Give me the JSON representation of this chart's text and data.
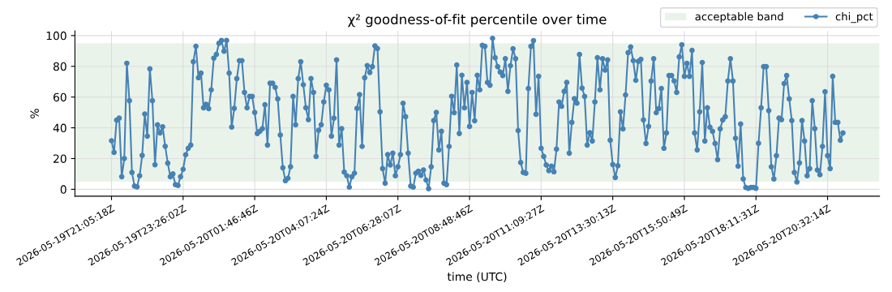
{
  "chart_data": {
    "type": "line",
    "title": "χ² goodness-of-fit percentile over time",
    "xlabel": "time (UTC)",
    "ylabel": "%",
    "categories": [
      "2026-05-19T21:05:18Z",
      null,
      null,
      null,
      null,
      null,
      null,
      null,
      null,
      null,
      null,
      null,
      null,
      null,
      null,
      null,
      null,
      null,
      null,
      null,
      null,
      null,
      null,
      null,
      null,
      null,
      null,
      null,
      "2026-05-19T23:26:02Z",
      null,
      null,
      null,
      null,
      null,
      null,
      null,
      null,
      null,
      null,
      null,
      null,
      null,
      null,
      null,
      null,
      null,
      null,
      null,
      null,
      null,
      null,
      null,
      null,
      null,
      null,
      null,
      "2026-05-20T01:46:46Z",
      null,
      null,
      null,
      null,
      null,
      null,
      null,
      null,
      null,
      null,
      null,
      null,
      null,
      null,
      null,
      null,
      null,
      null,
      null,
      null,
      null,
      null,
      null,
      null,
      null,
      null,
      null,
      "2026-05-20T04:07:24Z",
      null,
      null,
      null,
      null,
      null,
      null,
      null,
      null,
      null,
      null,
      null,
      null,
      null,
      null,
      null,
      null,
      null,
      null,
      null,
      null,
      null,
      null,
      null,
      null,
      null,
      null,
      null,
      "2026-05-20T06:28:07Z",
      null,
      null,
      null,
      null,
      null,
      null,
      null,
      null,
      null,
      null,
      null,
      null,
      null,
      null,
      null,
      null,
      null,
      null,
      null,
      null,
      null,
      null,
      null,
      null,
      null,
      null,
      null,
      "2026-05-20T08:48:46Z",
      null,
      null,
      null,
      null,
      null,
      null,
      null,
      null,
      null,
      null,
      null,
      null,
      null,
      null,
      null,
      null,
      null,
      null,
      null,
      null,
      null,
      null,
      null,
      null,
      null,
      null,
      null,
      "2026-05-20T11:09:27Z",
      null,
      null,
      null,
      null,
      null,
      null,
      null,
      null,
      null,
      null,
      null,
      null,
      null,
      null,
      null,
      null,
      null,
      null,
      null,
      null,
      null,
      null,
      null,
      null,
      null,
      null,
      null,
      "2026-05-20T13:30:13Z",
      null,
      null,
      null,
      null,
      null,
      null,
      null,
      null,
      null,
      null,
      null,
      null,
      null,
      null,
      null,
      null,
      null,
      null,
      null,
      null,
      null,
      null,
      null,
      null,
      null,
      null,
      null,
      "2026-05-20T15:50:49Z",
      null,
      null,
      null,
      null,
      null,
      null,
      null,
      null,
      null,
      null,
      null,
      null,
      null,
      null,
      null,
      null,
      null,
      null,
      null,
      null,
      null,
      null,
      null,
      null,
      null,
      null,
      null,
      "2026-05-20T18:11:31Z",
      null,
      null,
      null,
      null,
      null,
      null,
      null,
      null,
      null,
      null,
      null,
      null,
      null,
      null,
      null,
      null,
      null,
      null,
      null,
      null,
      null,
      null,
      null,
      null,
      null,
      null,
      null,
      "2026-05-20T20:32:14Z",
      null,
      null,
      null,
      null,
      null,
      null
    ],
    "series": [
      {
        "name": "chi_pct",
        "color": "#4682b4",
        "values": [
          31.6,
          24,
          45,
          46.3,
          8.2,
          20,
          82,
          57.7,
          11,
          2.1,
          1.6,
          8.8,
          22,
          49,
          34.6,
          78.4,
          57.7,
          16,
          42,
          36.7,
          40.7,
          28,
          17,
          8.2,
          10,
          3,
          2.5,
          8.2,
          13,
          22.5,
          26.7,
          28.8,
          83,
          93,
          72.6,
          75.6,
          53,
          55.3,
          52.5,
          64.7,
          85.3,
          87.7,
          95,
          96.8,
          89.8,
          96.8,
          75.6,
          40.5,
          52.6,
          72,
          83.7,
          83.7,
          63,
          53,
          60.4,
          60.4,
          50,
          36.3,
          37.7,
          39.5,
          55,
          28.8,
          69,
          69,
          66.3,
          58.8,
          35.3,
          14,
          5.6,
          7.2,
          14.7,
          60.4,
          42,
          72,
          83,
          68,
          53,
          45.3,
          72,
          63,
          21.4,
          38.4,
          42,
          56.8,
          67.7,
          64.7,
          34.6,
          46.3,
          84.2,
          28.8,
          39.5,
          11.2,
          8.8,
          1.4,
          8.2,
          10.5,
          52.6,
          61.6,
          27.9,
          72.6,
          80.5,
          76,
          79.8,
          93.3,
          91.6,
          50.4,
          13.5,
          4,
          22.6,
          15.8,
          23.5,
          8.8,
          14.7,
          22.6,
          56,
          47.2,
          23.5,
          2.1,
          1.4,
          10.5,
          11.8,
          9.1,
          12.6,
          6,
          0.4,
          14.7,
          44.7,
          50,
          25.6,
          37.7,
          4,
          3,
          27.9,
          60.5,
          49.8,
          80.9,
          36.3,
          74.2,
          53,
          69.5,
          40.9,
          63,
          44.6,
          74.2,
          64.7,
          93.7,
          93,
          69.5,
          67.7,
          98.2,
          85.6,
          79.8,
          76.3,
          74,
          85,
          63.7,
          80.4,
          91.4,
          85,
          38.2,
          17.4,
          11,
          10.4,
          65.6,
          93,
          96.7,
          48.8,
          73.5,
          26.7,
          21.4,
          15.8,
          12.1,
          15.1,
          11.4,
          26.1,
          56.8,
          54,
          63.7,
          69.5,
          23.5,
          43.5,
          59,
          56,
          87.7,
          65.8,
          60.4,
          28.8,
          36.8,
          31.4,
          56.8,
          85.6,
          64.7,
          85,
          77.5,
          84.2,
          31.9,
          16.1,
          7.7,
          15.3,
          50.4,
          39.3,
          61.4,
          88.9,
          92.6,
          83.7,
          70.9,
          83.2,
          84.6,
          45.1,
          29.8,
          40.9,
          70.4,
          85,
          49.8,
          52.5,
          65.6,
          26.7,
          36.7,
          74,
          74,
          70.5,
          63,
          86.1,
          94,
          73.5,
          81.9,
          73.5,
          90.4,
          36.7,
          25.6,
          50.4,
          82.5,
          31.4,
          53,
          40.4,
          37.7,
          29.8,
          19.3,
          39.3,
          45.1,
          47.2,
          70.4,
          85,
          70.4,
          33.2,
          15.1,
          42.5,
          6.7,
          1.2,
          0.7,
          1.2,
          1.2,
          0.7,
          30,
          53,
          79.8,
          79.8,
          51.2,
          14.7,
          6.7,
          21.9,
          46.3,
          45.3,
          68.8,
          74,
          58.8,
          44.7,
          11,
          4.7,
          17.2,
          44.7,
          31.4,
          8.8,
          13.5,
          57.7,
          39.5,
          12.5,
          9.5,
          27.9,
          63.5,
          21.9,
          13.5,
          73.5,
          43.5,
          43.5,
          31.9,
          36.7
        ]
      }
    ],
    "bands": [
      {
        "axis": "y",
        "from": 5,
        "to": 95,
        "label": "acceptable band",
        "color": "#eaf3ea"
      }
    ],
    "ylim": [
      -4.5,
      103
    ],
    "yticks": [
      0,
      20,
      40,
      60,
      80,
      100
    ],
    "grid": true,
    "legend": "top right",
    "marker": "circle",
    "line_style": "solid"
  }
}
